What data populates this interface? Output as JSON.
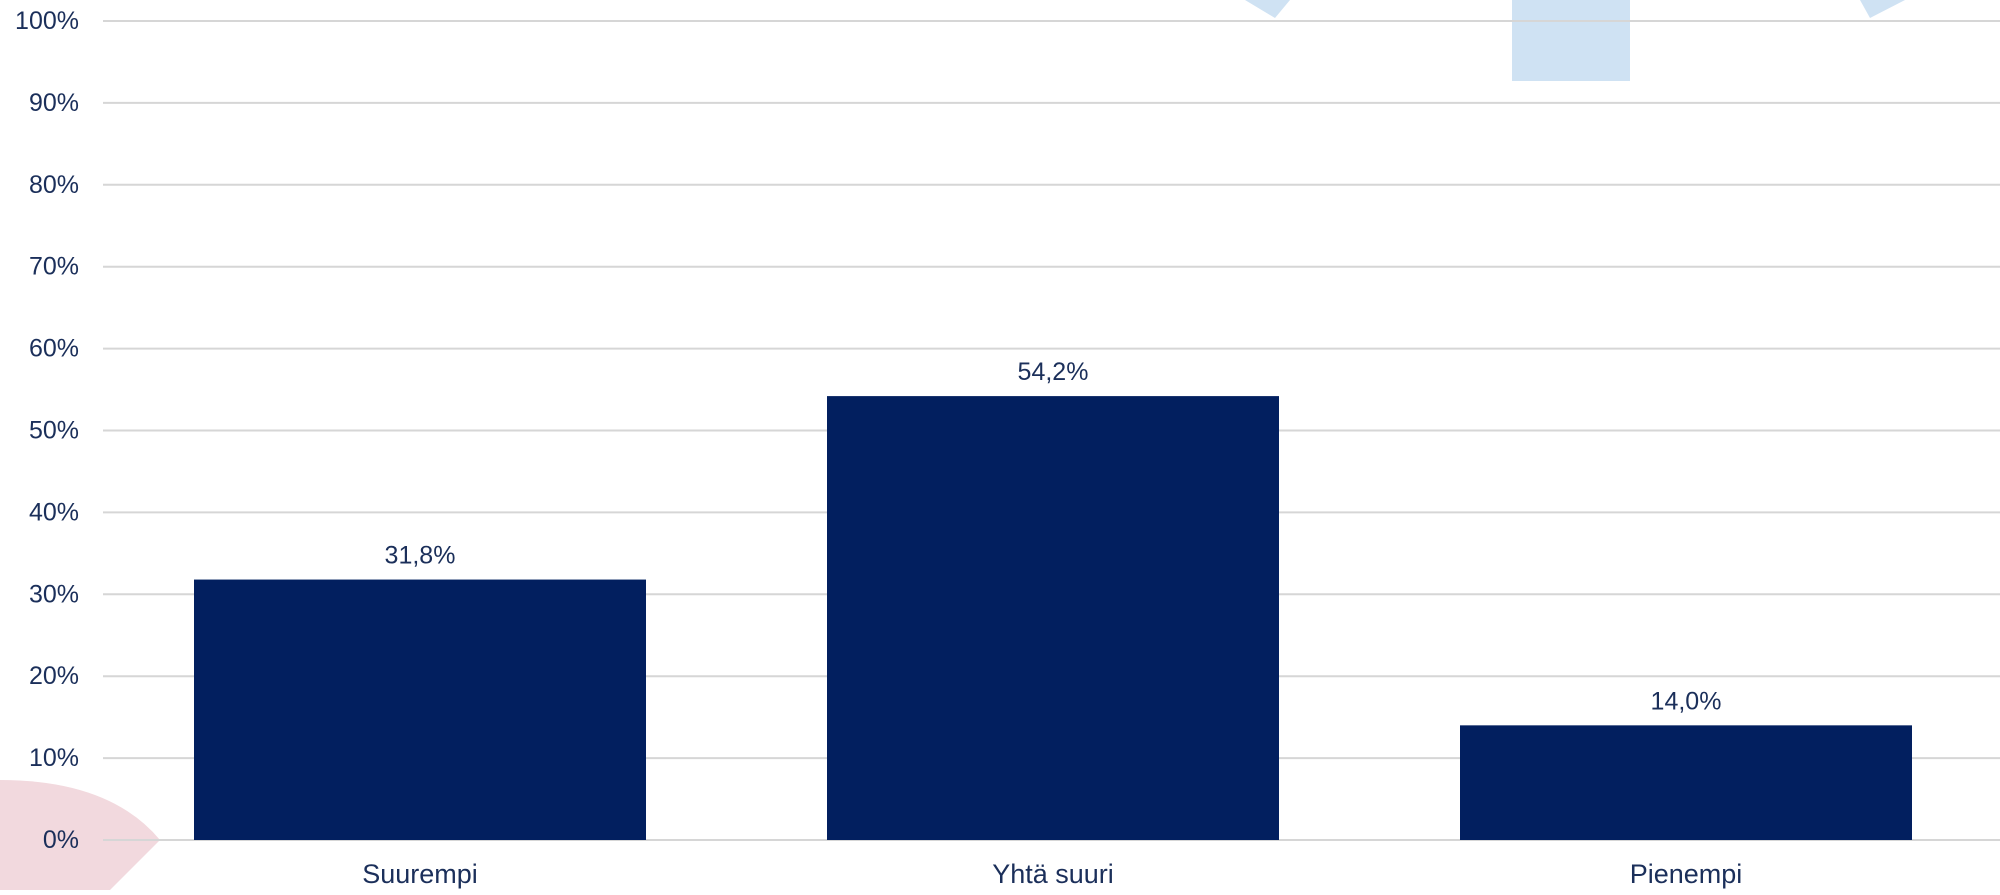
{
  "chart_data": {
    "type": "bar",
    "categories": [
      "Suurempi",
      "Yhtä suuri",
      "Pienempi"
    ],
    "values": [
      31.8,
      54.2,
      14.0
    ],
    "data_labels": [
      "31,8%",
      "54,2%",
      "14,0%"
    ],
    "y_ticks": [
      "0%",
      "10%",
      "20%",
      "30%",
      "40%",
      "50%",
      "60%",
      "70%",
      "80%",
      "90%",
      "100%"
    ],
    "ylim": [
      0,
      100
    ],
    "grid": true,
    "legend": "none",
    "title": "",
    "xlabel": "",
    "ylabel": ""
  },
  "colors": {
    "bar": "#021f5f",
    "text": "#1b2f5a",
    "grid": "#d6d6d6",
    "deco_blue": "#cfe2f3",
    "deco_pink": "#f2d9de"
  }
}
